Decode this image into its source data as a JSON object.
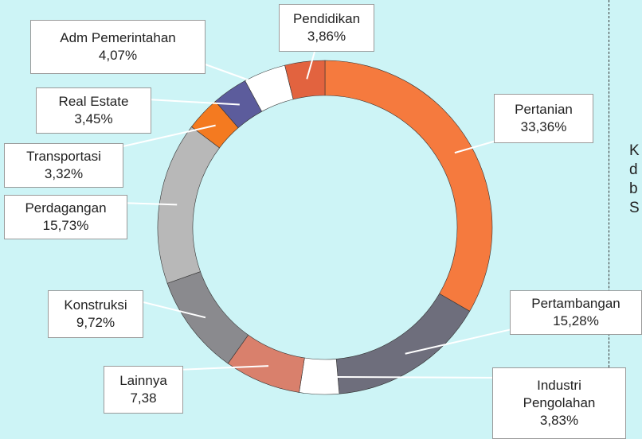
{
  "chart_data": {
    "type": "donut",
    "categories": [
      "Pertanian",
      "Pertambangan",
      "Industri Pengolahan",
      "Lainnya",
      "Konstruksi",
      "Perdagangan",
      "Transportasi",
      "Real Estate",
      "Adm Pemerintahan",
      "Pendidikan"
    ],
    "values": [
      33.36,
      15.28,
      3.83,
      7.38,
      9.72,
      15.73,
      3.32,
      3.45,
      4.07,
      3.86
    ],
    "value_labels": [
      "33,36%",
      "15,28%",
      "3,83%",
      "7,38",
      "9,72%",
      "15,73%",
      "3,32%",
      "3,45%",
      "4,07%",
      "3,86%"
    ],
    "colors": [
      "#f57a3e",
      "#6e6e7c",
      "#ffffff",
      "#d9806c",
      "#8a8a8e",
      "#b8b8b8",
      "#f47a20",
      "#5c5c9c",
      "#ffffff",
      "#e2633f"
    ],
    "side_text": [
      "K",
      "d",
      "b",
      "S"
    ]
  }
}
